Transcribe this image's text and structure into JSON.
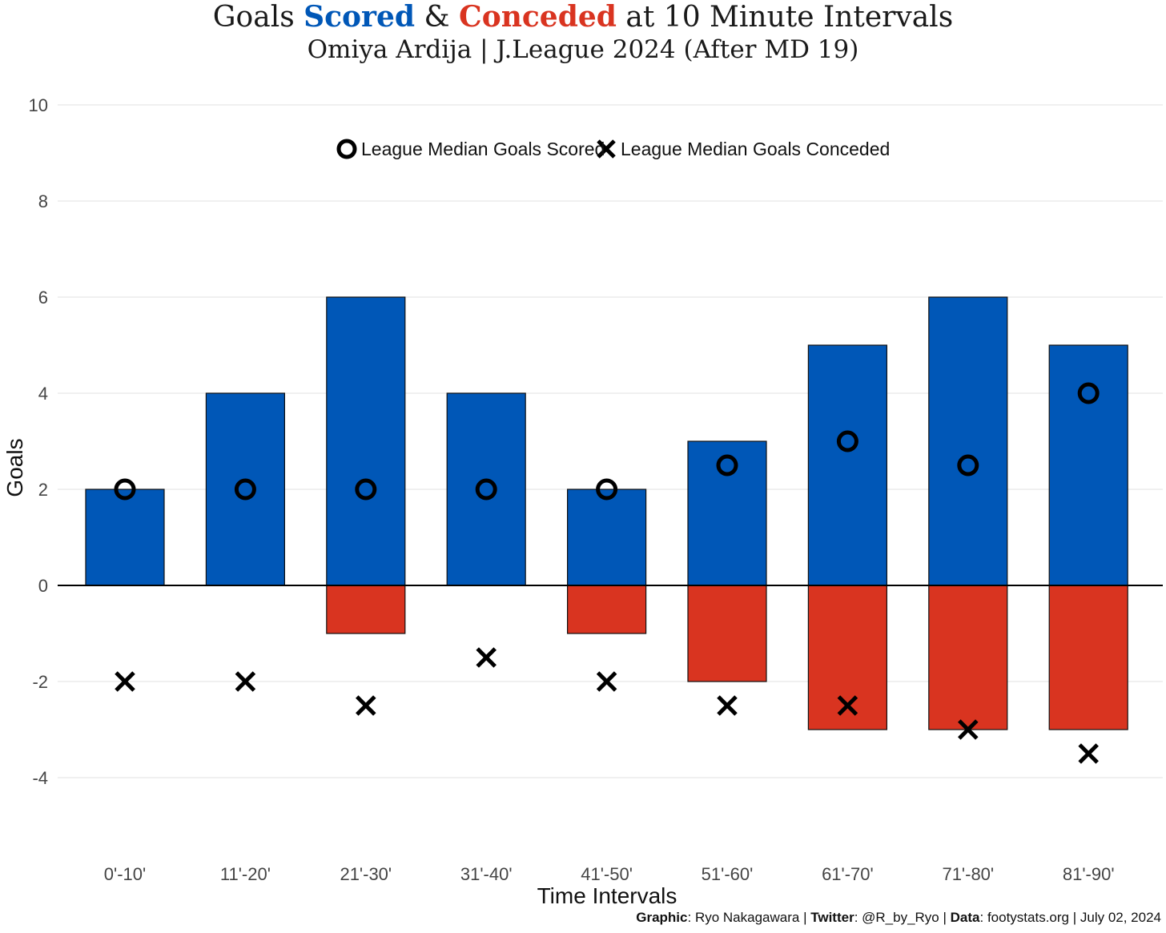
{
  "title": {
    "prefix": "Goals ",
    "scored_word": "Scored",
    "amp": " & ",
    "conceded_word": "Conceded",
    "suffix": " at 10 Minute Intervals"
  },
  "subtitle": "Omiya Ardija | J.League 2024 (After MD 19)",
  "colors": {
    "scored": "#0057b7",
    "conceded": "#d93420",
    "marker": "#000000",
    "grid": "#e6e6e6"
  },
  "legend": {
    "scored_label": "League Median Goals Scored",
    "conceded_label": "League Median Goals Conceded"
  },
  "caption": {
    "graphic_label": "Graphic",
    "graphic_value": ": Ryo Nakagawara | ",
    "twitter_label": "Twitter",
    "twitter_value": ": @R_by_Ryo | ",
    "data_label": "Data",
    "data_value": ": footystats.org | July 02, 2024"
  },
  "chart_data": {
    "type": "bar",
    "xlabel": "Time Intervals",
    "ylabel": "Goals",
    "ylim": [
      -5.5,
      10.5
    ],
    "yticks": [
      -4,
      -2,
      0,
      2,
      4,
      6,
      8,
      10
    ],
    "categories": [
      "0'-10'",
      "11'-20'",
      "21'-30'",
      "31'-40'",
      "41'-50'",
      "51'-60'",
      "61'-70'",
      "71'-80'",
      "81'-90'"
    ],
    "series": [
      {
        "name": "Goals Scored",
        "values": [
          2,
          4,
          6,
          4,
          2,
          3,
          5,
          6,
          5
        ]
      },
      {
        "name": "Goals Conceded",
        "values": [
          0,
          0,
          -1,
          0,
          -1,
          -2,
          -3,
          -3,
          -3
        ]
      },
      {
        "name": "League Median Goals Scored",
        "marker": "circle",
        "values": [
          2,
          2,
          2,
          2,
          2,
          2.5,
          3,
          2.5,
          4
        ]
      },
      {
        "name": "League Median Goals Conceded",
        "marker": "cross",
        "values": [
          -2,
          -2,
          -2.5,
          -1.5,
          -2,
          -2.5,
          -2.5,
          -3,
          -3.5
        ]
      }
    ],
    "grid": true,
    "legend_position": "top-center"
  }
}
